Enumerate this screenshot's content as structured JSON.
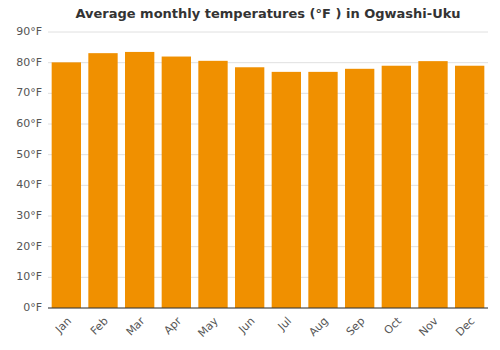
{
  "chart_data": {
    "type": "bar",
    "title": "Average monthly temperatures (°F ) in Ogwashi-Uku",
    "categories": [
      "Jan",
      "Feb",
      "Mar",
      "Apr",
      "May",
      "Jun",
      "Jul",
      "Aug",
      "Sep",
      "Oct",
      "Nov",
      "Dec"
    ],
    "values": [
      80.1,
      83.1,
      83.5,
      82.0,
      80.6,
      78.5,
      77.0,
      77.0,
      78.0,
      79.0,
      80.5,
      79.0
    ],
    "color": "#F09000",
    "ylim": [
      0,
      90
    ],
    "yticks": [
      {
        "value": 0,
        "label": "0°F"
      },
      {
        "value": 10,
        "label": "10°F"
      },
      {
        "value": 20,
        "label": "20°F"
      },
      {
        "value": 30,
        "label": "30°F"
      },
      {
        "value": 40,
        "label": "40°F"
      },
      {
        "value": 50,
        "label": "50°F"
      },
      {
        "value": 60,
        "label": "60°F"
      },
      {
        "value": 70,
        "label": "70°F"
      },
      {
        "value": 80,
        "label": "80°F"
      },
      {
        "value": 90,
        "label": "90°F"
      }
    ],
    "grid": true
  }
}
